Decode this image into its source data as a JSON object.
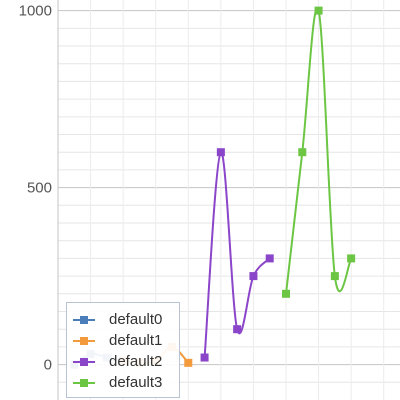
{
  "chart_data": {
    "type": "line",
    "title": "",
    "xlabel": "",
    "ylabel": "",
    "y_ticks": [
      "0",
      "500",
      "1000"
    ],
    "ylim": [
      -100,
      1030
    ],
    "xlim": [
      0,
      21
    ],
    "grid": true,
    "legend_placement": "bottom-left",
    "series": [
      {
        "name": "default0",
        "color": "#4a7ebb",
        "x": [
          1,
          2,
          3,
          4
        ],
        "values": [
          0,
          30,
          20,
          10
        ]
      },
      {
        "name": "default1",
        "color": "#f39a3c",
        "x": [
          4,
          5,
          6,
          7,
          8
        ],
        "values": [
          10,
          5,
          10,
          50,
          5
        ]
      },
      {
        "name": "default2",
        "color": "#8b45c9",
        "x": [
          9,
          10,
          11,
          12,
          13
        ],
        "values": [
          20,
          600,
          100,
          250,
          300
        ]
      },
      {
        "name": "default3",
        "color": "#6cc644",
        "x": [
          14,
          15,
          16,
          17,
          18
        ],
        "values": [
          200,
          600,
          1000,
          250,
          300
        ]
      }
    ]
  }
}
